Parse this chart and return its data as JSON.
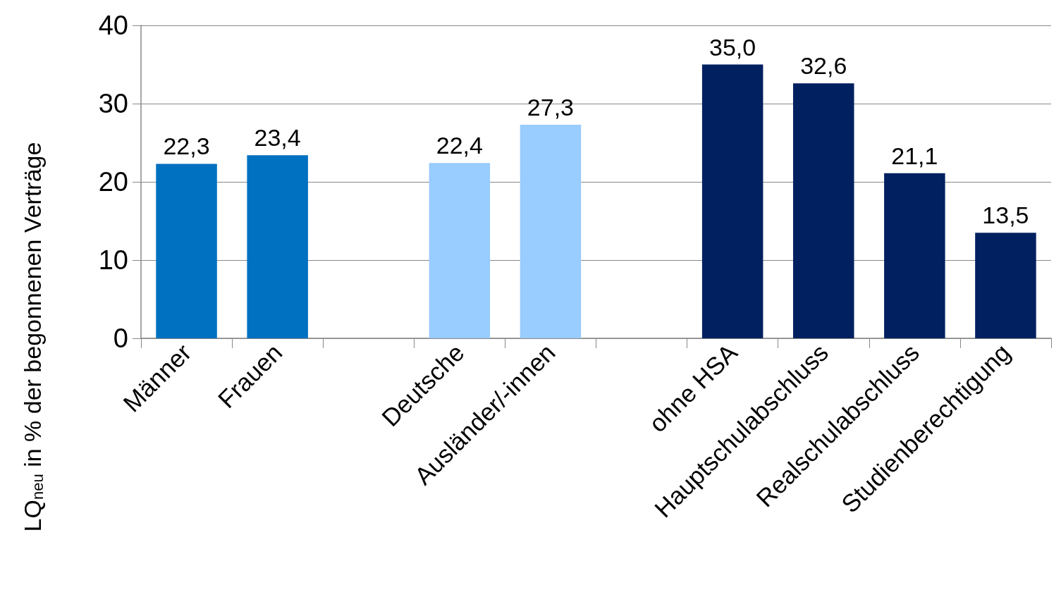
{
  "chart_data": {
    "type": "bar",
    "ylabel": "LQ$_{neu}$ in % der begonnenen Verträge",
    "categories": [
      "Männer",
      "Frauen",
      null,
      "Deutsche",
      "Ausländer/-innen",
      null,
      "ohne HSA",
      "Hauptschulabschluss",
      "Realschulabschluss",
      "Studienberechtigung"
    ],
    "values": [
      22.3,
      23.4,
      null,
      22.4,
      27.3,
      null,
      35.0,
      32.6,
      21.1,
      13.5
    ],
    "colors": [
      "#0070c0",
      "#0070c0",
      "#0070c0",
      "#99ccff",
      "#99ccff",
      "#99ccff",
      "#002060",
      "#002060",
      "#002060",
      "#002060"
    ],
    "value_labels": [
      "22,3",
      "23,4",
      null,
      "22,4",
      "27,3",
      null,
      "35,0",
      "32,6",
      "21,1",
      "13,5"
    ],
    "ylim": [
      0,
      40
    ],
    "yticks": [
      0,
      10,
      20,
      30,
      40
    ],
    "grid": "y"
  }
}
